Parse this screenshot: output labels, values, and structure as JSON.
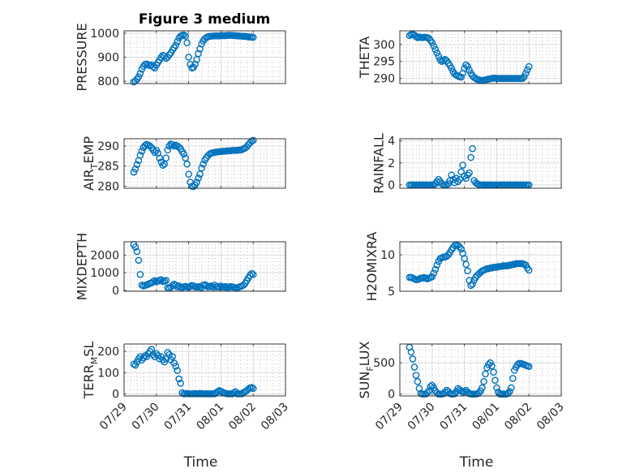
{
  "figure": {
    "title": "Figure 3 medium",
    "marker_color": "#0072BD",
    "xtick_labels": [
      "07/29",
      "07/30",
      "07/31",
      "08/01",
      "08/02",
      "08/03"
    ],
    "xlabel": "Time"
  },
  "chart_data": [
    {
      "type": "scatter",
      "ylabel": "PRESSURE",
      "ylim": [
        790,
        1010
      ],
      "yticks": [
        800,
        900,
        1000
      ],
      "yticklabels": [
        "800",
        "900",
        "1000"
      ],
      "grid": true,
      "x": [
        0.3,
        0.35,
        0.4,
        0.45,
        0.5,
        0.55,
        0.6,
        0.65,
        0.7,
        0.75,
        0.8,
        0.85,
        0.9,
        0.95,
        1.0,
        1.05,
        1.1,
        1.15,
        1.2,
        1.25,
        1.3,
        1.35,
        1.4,
        1.45,
        1.5,
        1.55,
        1.6,
        1.65,
        1.7,
        1.75,
        1.8,
        1.85,
        1.9,
        1.95,
        2.0,
        2.05,
        2.1,
        2.15,
        2.2,
        2.25,
        2.3,
        2.35,
        2.4,
        2.45,
        2.5,
        2.55,
        2.6,
        2.65,
        2.7,
        2.75,
        2.8,
        2.85,
        2.9,
        2.95,
        3.0,
        3.05,
        3.1,
        3.15,
        3.2,
        3.25,
        3.3,
        3.35,
        3.4,
        3.45,
        3.5,
        3.55,
        3.6,
        3.65,
        3.7,
        3.75,
        3.8,
        3.85,
        3.9,
        3.95,
        4.0
      ],
      "y": [
        797,
        801,
        808,
        818,
        832,
        850,
        862,
        870,
        872,
        868,
        865,
        868,
        860,
        855,
        867,
        878,
        888,
        900,
        908,
        904,
        895,
        900,
        910,
        918,
        930,
        940,
        950,
        965,
        980,
        988,
        991,
        993,
        988,
        960,
        900,
        870,
        855,
        858,
        870,
        890,
        915,
        935,
        955,
        968,
        977,
        982,
        985,
        987,
        988,
        988,
        989,
        989,
        989,
        989,
        990,
        990,
        990,
        990,
        991,
        991,
        991,
        991,
        990,
        990,
        989,
        989,
        988,
        988,
        987,
        987,
        986,
        985,
        984,
        984,
        983
      ]
    },
    {
      "type": "scatter",
      "ylabel": "THETA",
      "ylim": [
        288.5,
        304
      ],
      "yticks": [
        290,
        295,
        300
      ],
      "yticklabels": [
        "290",
        "295",
        "300"
      ],
      "grid": true,
      "x": [
        0.3,
        0.35,
        0.4,
        0.45,
        0.5,
        0.55,
        0.6,
        0.65,
        0.7,
        0.75,
        0.8,
        0.85,
        0.9,
        0.95,
        1.0,
        1.05,
        1.1,
        1.15,
        1.2,
        1.25,
        1.3,
        1.35,
        1.4,
        1.45,
        1.5,
        1.55,
        1.6,
        1.65,
        1.7,
        1.75,
        1.8,
        1.85,
        1.9,
        1.95,
        2.0,
        2.05,
        2.1,
        2.15,
        2.2,
        2.25,
        2.3,
        2.35,
        2.4,
        2.45,
        2.5,
        2.55,
        2.6,
        2.65,
        2.7,
        2.75,
        2.8,
        2.85,
        2.9,
        2.95,
        3.0,
        3.05,
        3.1,
        3.15,
        3.2,
        3.25,
        3.3,
        3.35,
        3.4,
        3.45,
        3.5,
        3.55,
        3.6,
        3.65,
        3.7,
        3.75,
        3.8,
        3.85,
        3.9,
        3.95,
        4.0
      ],
      "y": [
        302.6,
        302.9,
        303.0,
        302.8,
        302.3,
        302.0,
        302.2,
        302.1,
        302.0,
        302.1,
        302.1,
        302.0,
        301.8,
        301.2,
        300.5,
        299.5,
        298.5,
        297.5,
        296.5,
        295.5,
        295.0,
        295.3,
        295.6,
        295.2,
        294.5,
        293.8,
        293.0,
        292.0,
        291.3,
        291.0,
        290.7,
        290.5,
        290.4,
        291.5,
        293.0,
        294.0,
        293.5,
        292.5,
        291.5,
        290.8,
        290.3,
        290.0,
        289.7,
        289.6,
        289.5,
        289.4,
        289.5,
        289.6,
        289.7,
        289.8,
        289.9,
        290.0,
        290.1,
        290.1,
        290.0,
        290.0,
        290.0,
        290.0,
        290.0,
        290.0,
        290.0,
        290.0,
        290.0,
        290.0,
        290.0,
        290.0,
        290.0,
        290.0,
        290.0,
        290.0,
        290.0,
        290.5,
        291.5,
        292.5,
        293.5
      ]
    },
    {
      "type": "scatter",
      "ylabel": "AIR_TEMP",
      "ylim": [
        279.5,
        291.8
      ],
      "yticks": [
        280,
        285,
        290
      ],
      "yticklabels": [
        "280",
        "285",
        "290"
      ],
      "grid": true,
      "x": [
        0.3,
        0.35,
        0.4,
        0.45,
        0.5,
        0.55,
        0.6,
        0.65,
        0.7,
        0.75,
        0.8,
        0.85,
        0.9,
        0.95,
        1.0,
        1.05,
        1.1,
        1.15,
        1.2,
        1.25,
        1.3,
        1.35,
        1.4,
        1.45,
        1.5,
        1.55,
        1.6,
        1.65,
        1.7,
        1.75,
        1.8,
        1.85,
        1.9,
        1.95,
        2.0,
        2.05,
        2.1,
        2.15,
        2.2,
        2.25,
        2.3,
        2.35,
        2.4,
        2.45,
        2.5,
        2.55,
        2.6,
        2.65,
        2.7,
        2.75,
        2.8,
        2.85,
        2.9,
        2.95,
        3.0,
        3.05,
        3.1,
        3.15,
        3.2,
        3.25,
        3.3,
        3.35,
        3.4,
        3.45,
        3.5,
        3.55,
        3.6,
        3.65,
        3.7,
        3.75,
        3.8,
        3.85,
        3.9,
        3.95,
        4.0
      ],
      "y": [
        283.5,
        284.3,
        285.4,
        286.4,
        287.7,
        288.7,
        289.6,
        290.1,
        290.4,
        290.2,
        290.0,
        289.6,
        289.0,
        288.4,
        288.9,
        288.2,
        287.0,
        286.0,
        285.2,
        285.5,
        287.0,
        289.0,
        290.0,
        290.5,
        290.3,
        290.0,
        290.2,
        290.0,
        289.7,
        289.3,
        288.6,
        288.0,
        287.0,
        285.5,
        283.0,
        281.0,
        280.0,
        279.9,
        280.3,
        281.0,
        282.0,
        283.0,
        284.5,
        285.5,
        286.5,
        287.1,
        287.6,
        288.0,
        288.2,
        288.3,
        288.4,
        288.5,
        288.5,
        288.6,
        288.6,
        288.7,
        288.7,
        288.7,
        288.8,
        288.8,
        288.8,
        288.9,
        288.9,
        288.9,
        288.9,
        289.0,
        289.0,
        289.1,
        289.3,
        289.5,
        289.8,
        290.3,
        290.8,
        291.2,
        291.4
      ]
    },
    {
      "type": "scatter",
      "ylabel": "RAINFALL",
      "ylim": [
        -0.3,
        4.2
      ],
      "yticks": [
        0,
        2,
        4
      ],
      "yticklabels": [
        "0",
        "2",
        "4"
      ],
      "grid": true,
      "x": [
        0.3,
        0.35,
        0.4,
        0.45,
        0.5,
        0.55,
        0.6,
        0.65,
        0.7,
        0.75,
        0.8,
        0.85,
        0.9,
        0.95,
        1.0,
        1.05,
        1.1,
        1.15,
        1.2,
        1.25,
        1.3,
        1.35,
        1.4,
        1.45,
        1.5,
        1.55,
        1.6,
        1.65,
        1.7,
        1.75,
        1.8,
        1.85,
        1.9,
        1.95,
        2.0,
        2.05,
        2.1,
        2.15,
        2.2,
        2.25,
        2.3,
        2.35,
        2.4,
        2.45,
        2.5,
        2.55,
        2.6,
        2.65,
        2.7,
        2.75,
        2.8,
        2.85,
        2.9,
        2.95,
        3.0,
        3.05,
        3.1,
        3.15,
        3.2,
        3.25,
        3.3,
        3.35,
        3.4,
        3.45,
        3.5,
        3.55,
        3.6,
        3.65,
        3.7,
        3.75,
        3.8,
        3.85,
        3.9,
        3.95,
        4.0
      ],
      "y": [
        0.0,
        0.0,
        0.0,
        0.0,
        0.0,
        0.0,
        0.0,
        0.0,
        0.0,
        0.0,
        0.0,
        0.0,
        0.0,
        0.0,
        0.0,
        0.0,
        0.1,
        0.3,
        0.5,
        0.3,
        0.1,
        0.0,
        0.0,
        0.0,
        0.1,
        0.4,
        0.9,
        0.5,
        0.2,
        0.6,
        0.3,
        0.5,
        1.2,
        1.8,
        0.8,
        0.6,
        0.9,
        1.1,
        2.5,
        3.3,
        0.4,
        0.2,
        0.1,
        0.0,
        0.0,
        0.0,
        0.0,
        0.0,
        0.0,
        0.0,
        0.0,
        0.0,
        0.0,
        0.0,
        0.0,
        0.0,
        0.0,
        0.0,
        0.0,
        0.0,
        0.0,
        0.0,
        0.0,
        0.0,
        0.0,
        0.0,
        0.0,
        0.0,
        0.0,
        0.0,
        0.0,
        0.0,
        0.0,
        0.0,
        0.0
      ]
    },
    {
      "type": "scatter",
      "ylabel": "MIXDEPTH",
      "ylim": [
        -50,
        2750
      ],
      "yticks": [
        0,
        1000,
        2000
      ],
      "yticklabels": [
        "0",
        "1000",
        "2000"
      ],
      "grid": true,
      "x": [
        0.3,
        0.35,
        0.4,
        0.45,
        0.5,
        0.55,
        0.6,
        0.65,
        0.7,
        0.75,
        0.8,
        0.85,
        0.9,
        0.95,
        1.0,
        1.05,
        1.1,
        1.15,
        1.2,
        1.25,
        1.3,
        1.35,
        1.4,
        1.45,
        1.5,
        1.55,
        1.6,
        1.65,
        1.7,
        1.75,
        1.8,
        1.85,
        1.9,
        1.95,
        2.0,
        2.05,
        2.1,
        2.15,
        2.2,
        2.25,
        2.3,
        2.35,
        2.4,
        2.45,
        2.5,
        2.55,
        2.6,
        2.65,
        2.7,
        2.75,
        2.8,
        2.85,
        2.9,
        2.95,
        3.0,
        3.05,
        3.1,
        3.15,
        3.2,
        3.25,
        3.3,
        3.35,
        3.4,
        3.45,
        3.5,
        3.55,
        3.6,
        3.65,
        3.7,
        3.75,
        3.8,
        3.85,
        3.9,
        3.95,
        4.0
      ],
      "y": [
        2600,
        2450,
        2200,
        1700,
        900,
        300,
        250,
        280,
        320,
        350,
        400,
        420,
        500,
        550,
        480,
        520,
        580,
        600,
        500,
        520,
        560,
        150,
        120,
        180,
        280,
        350,
        300,
        200,
        250,
        180,
        150,
        200,
        230,
        200,
        180,
        220,
        280,
        250,
        200,
        180,
        220,
        180,
        150,
        300,
        320,
        280,
        200,
        220,
        250,
        180,
        300,
        200,
        220,
        180,
        250,
        200,
        180,
        220,
        150,
        180,
        220,
        200,
        180,
        150,
        120,
        180,
        220,
        250,
        300,
        400,
        550,
        700,
        850,
        950,
        900
      ]
    },
    {
      "type": "scatter",
      "ylabel": "H2OMIXRA",
      "ylim": [
        5,
        11.8
      ],
      "yticks": [
        5,
        10
      ],
      "yticklabels": [
        "5",
        "10"
      ],
      "grid": true,
      "x": [
        0.3,
        0.35,
        0.4,
        0.45,
        0.5,
        0.55,
        0.6,
        0.65,
        0.7,
        0.75,
        0.8,
        0.85,
        0.9,
        0.95,
        1.0,
        1.05,
        1.1,
        1.15,
        1.2,
        1.25,
        1.3,
        1.35,
        1.4,
        1.45,
        1.5,
        1.55,
        1.6,
        1.65,
        1.7,
        1.75,
        1.8,
        1.85,
        1.9,
        1.95,
        2.0,
        2.05,
        2.1,
        2.15,
        2.2,
        2.25,
        2.3,
        2.35,
        2.4,
        2.45,
        2.5,
        2.55,
        2.6,
        2.65,
        2.7,
        2.75,
        2.8,
        2.85,
        2.9,
        2.95,
        3.0,
        3.05,
        3.1,
        3.15,
        3.2,
        3.25,
        3.3,
        3.35,
        3.4,
        3.45,
        3.5,
        3.55,
        3.6,
        3.65,
        3.7,
        3.75,
        3.8,
        3.85,
        3.9,
        3.95,
        4.0
      ],
      "y": [
        6.9,
        6.9,
        6.8,
        6.7,
        6.6,
        6.6,
        6.7,
        6.8,
        6.8,
        6.9,
        6.8,
        6.7,
        6.8,
        6.9,
        7.0,
        7.5,
        8.0,
        8.6,
        9.1,
        9.5,
        9.6,
        9.7,
        9.7,
        9.8,
        10.0,
        10.3,
        10.7,
        11.0,
        11.3,
        11.4,
        11.3,
        11.1,
        10.8,
        10.2,
        9.5,
        8.7,
        7.8,
        6.5,
        5.8,
        6.0,
        6.5,
        6.9,
        7.2,
        7.4,
        7.6,
        7.8,
        7.9,
        8.0,
        8.1,
        8.1,
        8.2,
        8.2,
        8.3,
        8.3,
        8.3,
        8.4,
        8.4,
        8.4,
        8.5,
        8.5,
        8.5,
        8.5,
        8.6,
        8.6,
        8.7,
        8.7,
        8.8,
        8.8,
        8.8,
        8.8,
        8.8,
        8.7,
        8.6,
        8.2,
        7.9
      ]
    },
    {
      "type": "scatter",
      "ylabel": "TERR_MSL",
      "ylim": [
        -10,
        235
      ],
      "yticks": [
        0,
        100,
        200
      ],
      "yticklabels": [
        "0",
        "100",
        "200"
      ],
      "grid": true,
      "x": [
        0.3,
        0.35,
        0.4,
        0.45,
        0.5,
        0.55,
        0.6,
        0.65,
        0.7,
        0.75,
        0.8,
        0.85,
        0.9,
        0.95,
        1.0,
        1.05,
        1.1,
        1.15,
        1.2,
        1.25,
        1.3,
        1.35,
        1.4,
        1.45,
        1.5,
        1.55,
        1.6,
        1.65,
        1.7,
        1.75,
        1.8,
        1.85,
        1.9,
        1.95,
        2.0,
        2.05,
        2.1,
        2.15,
        2.2,
        2.25,
        2.3,
        2.35,
        2.4,
        2.45,
        2.5,
        2.55,
        2.6,
        2.65,
        2.7,
        2.75,
        2.8,
        2.85,
        2.9,
        2.95,
        3.0,
        3.05,
        3.1,
        3.15,
        3.2,
        3.25,
        3.3,
        3.35,
        3.4,
        3.45,
        3.5,
        3.55,
        3.6,
        3.65,
        3.7,
        3.75,
        3.8,
        3.85,
        3.9,
        3.95,
        4.0
      ],
      "y": [
        140,
        135,
        150,
        165,
        175,
        160,
        170,
        180,
        175,
        190,
        200,
        210,
        185,
        175,
        190,
        180,
        165,
        175,
        160,
        150,
        165,
        195,
        185,
        160,
        175,
        145,
        130,
        110,
        70,
        50,
        5,
        0,
        0,
        2,
        0,
        0,
        0,
        0,
        1,
        0,
        0,
        2,
        0,
        0,
        0,
        0,
        0,
        0,
        0,
        0,
        0,
        5,
        10,
        15,
        12,
        8,
        4,
        2,
        0,
        0,
        0,
        0,
        5,
        10,
        0,
        0,
        0,
        0,
        5,
        10,
        15,
        22,
        28,
        30,
        25
      ]
    },
    {
      "type": "scatter",
      "ylabel": "SUN_FLUX",
      "ylim": [
        -30,
        800
      ],
      "yticks": [
        0,
        500
      ],
      "yticklabels": [
        "0",
        "500"
      ],
      "grid": true,
      "x": [
        0.3,
        0.35,
        0.4,
        0.45,
        0.5,
        0.55,
        0.6,
        0.65,
        0.7,
        0.75,
        0.8,
        0.85,
        0.9,
        0.95,
        1.0,
        1.05,
        1.1,
        1.15,
        1.2,
        1.25,
        1.3,
        1.35,
        1.4,
        1.45,
        1.5,
        1.55,
        1.6,
        1.65,
        1.7,
        1.75,
        1.8,
        1.85,
        1.9,
        1.95,
        2.0,
        2.05,
        2.1,
        2.15,
        2.2,
        2.25,
        2.3,
        2.35,
        2.4,
        2.45,
        2.5,
        2.55,
        2.6,
        2.65,
        2.7,
        2.75,
        2.8,
        2.85,
        2.9,
        2.95,
        3.0,
        3.05,
        3.1,
        3.15,
        3.2,
        3.25,
        3.3,
        3.35,
        3.4,
        3.45,
        3.5,
        3.55,
        3.6,
        3.65,
        3.7,
        3.75,
        3.8,
        3.85,
        3.9,
        3.95,
        4.0
      ],
      "y": [
        750,
        670,
        560,
        430,
        300,
        200,
        90,
        10,
        0,
        0,
        0,
        20,
        50,
        120,
        140,
        100,
        50,
        20,
        0,
        0,
        0,
        5,
        30,
        60,
        40,
        10,
        0,
        0,
        5,
        40,
        90,
        70,
        50,
        30,
        40,
        60,
        30,
        10,
        0,
        0,
        0,
        0,
        5,
        20,
        50,
        100,
        200,
        320,
        420,
        470,
        500,
        450,
        350,
        220,
        100,
        30,
        0,
        0,
        0,
        0,
        0,
        10,
        40,
        100,
        250,
        380,
        430,
        470,
        490,
        490,
        480,
        470,
        460,
        450,
        440
      ]
    }
  ]
}
